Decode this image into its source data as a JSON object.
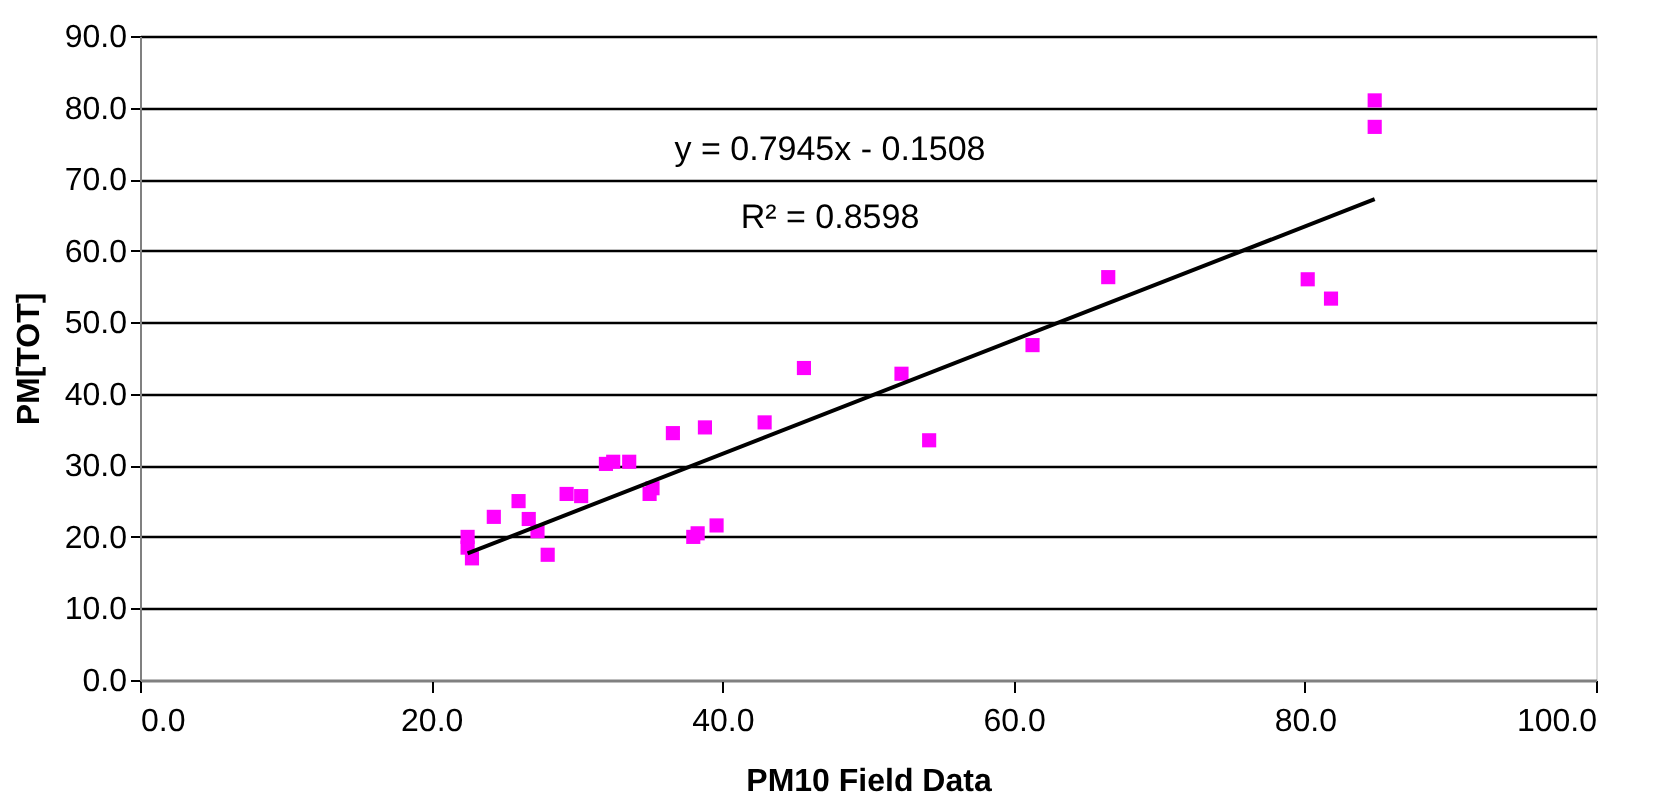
{
  "chart_data": {
    "type": "scatter",
    "xlabel": "PM10 Field Data",
    "ylabel": "PM[TOT]",
    "xlim": [
      0,
      100
    ],
    "xticks": [
      {
        "value": 0,
        "label": "0.0"
      },
      {
        "value": 20,
        "label": "20.0"
      },
      {
        "value": 40,
        "label": "40.0"
      },
      {
        "value": 60,
        "label": "60.0"
      },
      {
        "value": 80,
        "label": "80.0"
      },
      {
        "value": 100,
        "label": "100.0"
      }
    ],
    "ylim": [
      0,
      90
    ],
    "yticks": [
      {
        "value": 0,
        "label": "0.0"
      },
      {
        "value": 10,
        "label": "10.0"
      },
      {
        "value": 20,
        "label": "20.0"
      },
      {
        "value": 30,
        "label": "30.0"
      },
      {
        "value": 40,
        "label": "40.0"
      },
      {
        "value": 50,
        "label": "50.0"
      },
      {
        "value": 60,
        "label": "60.0"
      },
      {
        "value": 70,
        "label": "70.0"
      },
      {
        "value": 80,
        "label": "80.0"
      },
      {
        "value": 90,
        "label": "90.0"
      }
    ],
    "grid": "y",
    "legend": false,
    "annotations": [
      "y = 0.7945x - 0.1508",
      "R² = 0.8598"
    ],
    "series": [
      {
        "color": "#ff00ff",
        "marker": "square",
        "x": [
          22.5,
          22.5,
          22.8,
          24.3,
          26.0,
          26.7,
          27.3,
          28.0,
          29.3,
          30.3,
          32.0,
          32.5,
          33.6,
          35.0,
          35.2,
          36.6,
          38.0,
          38.3,
          38.8,
          39.6,
          42.9,
          45.6,
          52.3,
          54.2,
          61.3,
          66.5,
          80.2,
          81.8,
          84.8,
          84.8
        ],
        "values": [
          20.0,
          18.5,
          17.0,
          22.8,
          25.0,
          22.5,
          20.8,
          17.5,
          26.0,
          25.7,
          30.2,
          30.5,
          30.5,
          26.0,
          26.8,
          34.5,
          20.0,
          20.5,
          35.3,
          21.6,
          36.0,
          43.6,
          42.8,
          33.5,
          46.8,
          56.3,
          56.0,
          53.3,
          81.0,
          77.3
        ]
      },
      {
        "type": "line",
        "color": "#000000",
        "line_style": "solid",
        "x": [
          22.5,
          84.8
        ],
        "values": [
          17.7,
          67.2
        ]
      }
    ]
  }
}
